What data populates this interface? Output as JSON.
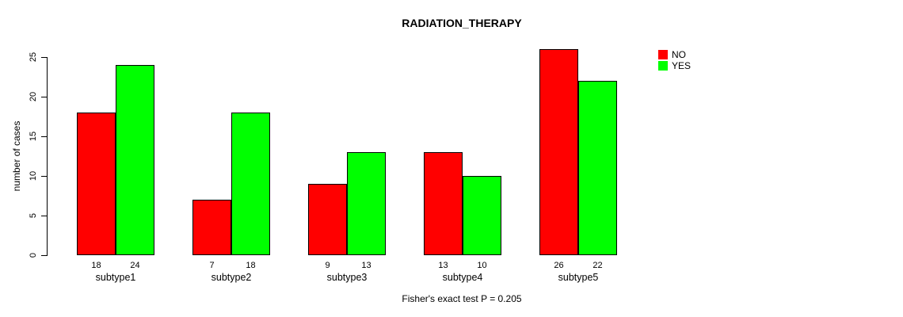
{
  "title": "RADIATION_THERAPY",
  "footer": "Fisher's exact test P = 0.205",
  "chart_data": {
    "type": "bar",
    "title": "RADIATION_THERAPY",
    "categories": [
      "subtype1",
      "subtype2",
      "subtype3",
      "subtype4",
      "subtype5"
    ],
    "series": [
      {
        "name": "NO",
        "color": "#FF0000",
        "values": [
          18,
          7,
          9,
          13,
          26
        ]
      },
      {
        "name": "YES",
        "color": "#00FF00",
        "values": [
          24,
          18,
          13,
          10,
          22
        ]
      }
    ],
    "bar_value_labels": {
      "NO": [
        18,
        7,
        9,
        13,
        26
      ],
      "YES": [
        24,
        18,
        13,
        10,
        22
      ]
    },
    "xlabel": "",
    "ylabel": "number of cases",
    "ylim": [
      0,
      25
    ],
    "yticks": [
      0,
      5,
      10,
      15,
      20,
      25
    ],
    "grid": false,
    "legend_position": "top-right",
    "annotation": "Fisher's exact test P = 0.205"
  }
}
